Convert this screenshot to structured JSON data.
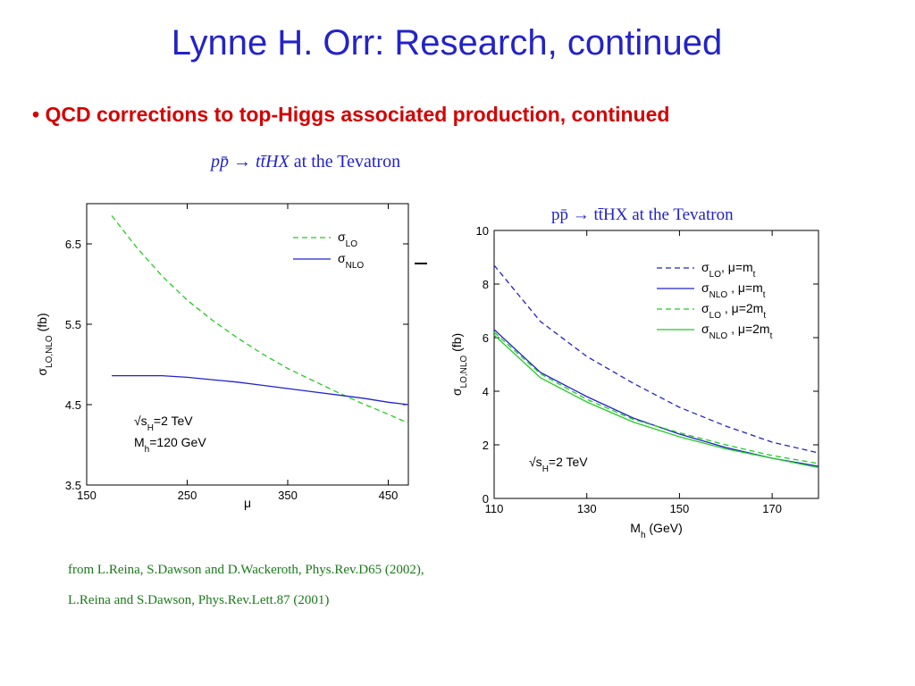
{
  "slide": {
    "title": "Lynne H. Orr: Research, continued",
    "bullet": "• QCD corrections to top-Higgs associated production, continued",
    "caption_top_prefix": "pp̄ → tt̄HX",
    "caption_top_suffix": " at the Tevatron",
    "references": [
      "from L.Reina, S.Dawson and D.Wackeroth, Phys.Rev.D65 (2002),",
      "L.Reina and S.Dawson, Phys.Rev.Lett.87 (2001)"
    ],
    "colors": {
      "title": "#2323c8",
      "bullet": "#d40000",
      "refs": "#1a7a1a",
      "lo": "#22cc22",
      "nlo": "#2222cc"
    }
  },
  "chart_data": [
    {
      "type": "line",
      "xlabel": "μ",
      "ylabel": "σLO,NLO (fb)",
      "xlim": [
        150,
        470
      ],
      "ylim": [
        3.5,
        7.0
      ],
      "xticks": [
        150,
        250,
        350,
        450
      ],
      "yticks": [
        3.5,
        4.5,
        5.5,
        6.5
      ],
      "annotations": [
        "√sH=2 TeV",
        "Mh=120 GeV"
      ],
      "legend_position": "top-right",
      "series": [
        {
          "name": "σLO",
          "color": "#22cc22",
          "dash": "dashed",
          "x": [
            175,
            200,
            225,
            250,
            275,
            300,
            325,
            350,
            375,
            400,
            425,
            450,
            470
          ],
          "y": [
            6.85,
            6.45,
            6.1,
            5.8,
            5.55,
            5.33,
            5.13,
            4.95,
            4.8,
            4.65,
            4.51,
            4.38,
            4.27
          ]
        },
        {
          "name": "σNLO",
          "color": "#2222cc",
          "dash": "solid",
          "x": [
            175,
            200,
            225,
            250,
            275,
            300,
            325,
            350,
            375,
            400,
            425,
            450,
            470
          ],
          "y": [
            4.86,
            4.86,
            4.86,
            4.84,
            4.81,
            4.78,
            4.74,
            4.7,
            4.66,
            4.62,
            4.58,
            4.53,
            4.5
          ]
        }
      ]
    },
    {
      "type": "line",
      "title": "pp̄ → tt̄HX at the Tevatron",
      "xlabel": "Mh (GeV)",
      "ylabel": "σLO,NLO (fb)",
      "xlim": [
        110,
        180
      ],
      "ylim": [
        0,
        10
      ],
      "xticks": [
        110,
        130,
        150,
        170
      ],
      "yticks": [
        0,
        2,
        4,
        6,
        8,
        10
      ],
      "annotations": [
        "√sH=2 TeV"
      ],
      "legend_position": "top-right",
      "series": [
        {
          "name": "σLO, μ=mt",
          "color": "#2222cc",
          "dash": "dashed",
          "x": [
            110,
            120,
            130,
            140,
            150,
            160,
            170,
            180
          ],
          "y": [
            8.7,
            6.6,
            5.3,
            4.3,
            3.4,
            2.7,
            2.1,
            1.7
          ]
        },
        {
          "name": "σNLO , μ=mt",
          "color": "#2222cc",
          "dash": "solid",
          "x": [
            110,
            120,
            130,
            140,
            150,
            160,
            170,
            180
          ],
          "y": [
            6.3,
            4.7,
            3.8,
            3.0,
            2.4,
            1.9,
            1.5,
            1.2
          ]
        },
        {
          "name": "σLO , μ=2mt",
          "color": "#22cc22",
          "dash": "dashed",
          "x": [
            110,
            120,
            130,
            140,
            150,
            160,
            170,
            180
          ],
          "y": [
            6.2,
            4.65,
            3.7,
            2.95,
            2.45,
            2.0,
            1.6,
            1.3
          ]
        },
        {
          "name": "σNLO , μ=2mt",
          "color": "#22cc22",
          "dash": "solid",
          "x": [
            110,
            120,
            130,
            140,
            150,
            160,
            170,
            180
          ],
          "y": [
            6.1,
            4.5,
            3.6,
            2.85,
            2.3,
            1.85,
            1.5,
            1.15
          ]
        }
      ]
    }
  ]
}
